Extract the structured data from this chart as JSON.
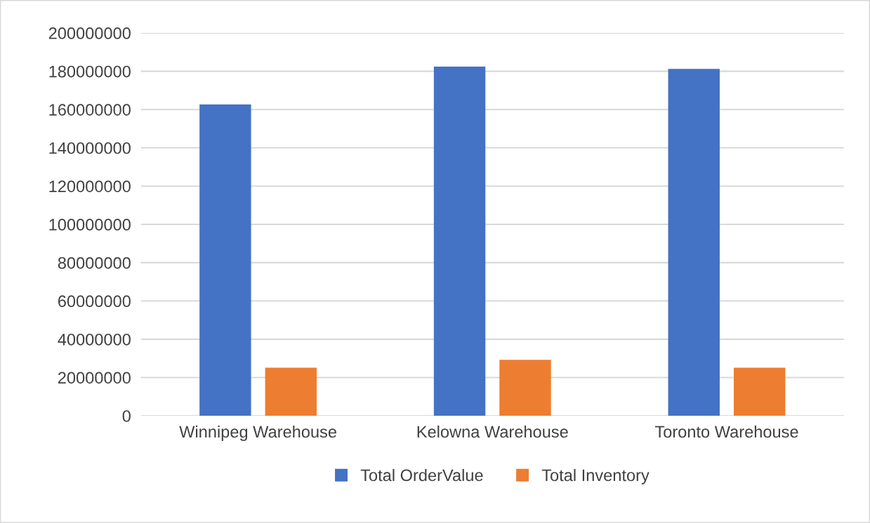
{
  "chart_data": {
    "type": "bar",
    "categories": [
      "Winnipeg Warehouse",
      "Kelowna Warehouse",
      "Toronto Warehouse"
    ],
    "series": [
      {
        "name": "Total OrderValue",
        "color": "#4472c4",
        "values": [
          162600000,
          182400000,
          181200000
        ]
      },
      {
        "name": "Total Inventory",
        "color": "#ed7d31",
        "values": [
          25100000,
          29200000,
          25100000
        ]
      }
    ],
    "ylim": [
      0,
      200000000
    ],
    "yticks": [
      0,
      20000000,
      40000000,
      60000000,
      80000000,
      100000000,
      120000000,
      140000000,
      160000000,
      180000000,
      200000000
    ],
    "grid": "y",
    "legend": "bottom"
  }
}
